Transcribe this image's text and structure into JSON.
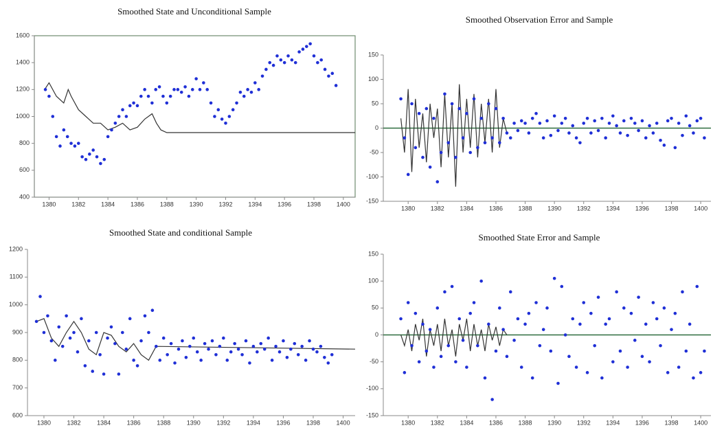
{
  "chart_data": [
    {
      "type": "scatter",
      "title": "Smoothed State and Unconditional Sample",
      "xlim": [
        1379,
        1400.8
      ],
      "xticks": [
        1380,
        1382,
        1384,
        1386,
        1388,
        1390,
        1392,
        1394,
        1396,
        1398,
        1400
      ],
      "ylim": [
        400,
        1600
      ],
      "yticks": [
        400,
        600,
        800,
        1000,
        1200,
        1400,
        1600
      ],
      "frame": true,
      "zero_line": false,
      "series": [
        {
          "mode": "line",
          "color": "#333333",
          "x": [
            1379.7,
            1380,
            1380.5,
            1381,
            1381.3,
            1381.5,
            1382,
            1382.5,
            1383,
            1383.5,
            1384,
            1384.5,
            1385,
            1385.5,
            1386,
            1386.5,
            1387,
            1387.3,
            1387.6,
            1388,
            1400.8
          ],
          "values": [
            1200,
            1250,
            1150,
            1100,
            1200,
            1150,
            1050,
            1000,
            950,
            950,
            900,
            920,
            950,
            900,
            920,
            980,
            1020,
            950,
            900,
            880,
            880
          ]
        },
        {
          "mode": "markers",
          "color": "#1f2fd6",
          "x": [
            1379.75,
            1380,
            1380.25,
            1380.5,
            1380.75,
            1381,
            1381.25,
            1381.5,
            1381.75,
            1382,
            1382.25,
            1382.5,
            1382.75,
            1383,
            1383.25,
            1383.5,
            1383.75,
            1384,
            1384.25,
            1384.5,
            1384.75,
            1385,
            1385.25,
            1385.5,
            1385.75,
            1386,
            1386.25,
            1386.5,
            1386.75,
            1387,
            1387.25,
            1387.5,
            1387.75,
            1388,
            1388.25,
            1388.5,
            1388.75,
            1389,
            1389.25,
            1389.5,
            1389.75,
            1390,
            1390.25,
            1390.5,
            1390.75,
            1391,
            1391.25,
            1391.5,
            1391.75,
            1392,
            1392.25,
            1392.5,
            1392.75,
            1393,
            1393.25,
            1393.5,
            1393.75,
            1394,
            1394.25,
            1394.5,
            1394.75,
            1395,
            1395.25,
            1395.5,
            1395.75,
            1396,
            1396.25,
            1396.5,
            1396.75,
            1397,
            1397.25,
            1397.5,
            1397.75,
            1398,
            1398.25,
            1398.5,
            1398.75,
            1399,
            1399.25,
            1399.5
          ],
          "values": [
            1200,
            1150,
            1000,
            850,
            780,
            900,
            850,
            800,
            780,
            800,
            700,
            680,
            720,
            750,
            700,
            650,
            680,
            850,
            900,
            950,
            1000,
            1050,
            1000,
            1080,
            1100,
            1080,
            1150,
            1200,
            1150,
            1100,
            1200,
            1220,
            1150,
            1100,
            1150,
            1200,
            1200,
            1180,
            1220,
            1150,
            1200,
            1280,
            1200,
            1250,
            1200,
            1100,
            1000,
            1050,
            980,
            950,
            1000,
            1050,
            1100,
            1180,
            1150,
            1200,
            1180,
            1250,
            1200,
            1300,
            1350,
            1400,
            1380,
            1450,
            1420,
            1400,
            1450,
            1420,
            1400,
            1480,
            1500,
            1520,
            1540,
            1450,
            1400,
            1420,
            1350,
            1300,
            1320,
            1230
          ]
        }
      ]
    },
    {
      "type": "scatter",
      "title": "Smoothed Observation Error and Sample",
      "xlim": [
        1378.3,
        1400.7
      ],
      "xticks": [
        1380,
        1382,
        1384,
        1386,
        1388,
        1390,
        1392,
        1394,
        1396,
        1398,
        1400
      ],
      "ylim": [
        -150,
        150
      ],
      "yticks": [
        -150,
        -100,
        -50,
        0,
        50,
        100,
        150
      ],
      "frame": false,
      "zero_line": true,
      "series": [
        {
          "mode": "line",
          "color": "#333333",
          "x": [
            1379.5,
            1379.75,
            1380,
            1380.25,
            1380.5,
            1380.75,
            1381,
            1381.25,
            1381.5,
            1381.75,
            1382,
            1382.25,
            1382.5,
            1382.75,
            1383,
            1383.25,
            1383.5,
            1383.75,
            1384,
            1384.25,
            1384.5,
            1384.75,
            1385,
            1385.25,
            1385.5,
            1385.75,
            1386,
            1386.25,
            1386.5,
            1386.75
          ],
          "values": [
            20,
            -50,
            80,
            -90,
            60,
            -40,
            30,
            -70,
            50,
            -20,
            40,
            -80,
            70,
            -60,
            50,
            -120,
            90,
            -50,
            60,
            -40,
            70,
            -60,
            50,
            -30,
            60,
            -50,
            80,
            -40,
            20,
            -10
          ]
        },
        {
          "mode": "markers",
          "color": "#1f2fd6",
          "x": [
            1379.5,
            1379.75,
            1380,
            1380.25,
            1380.5,
            1380.75,
            1381,
            1381.25,
            1381.5,
            1381.75,
            1382,
            1382.25,
            1382.5,
            1382.75,
            1383,
            1383.25,
            1383.5,
            1383.75,
            1384,
            1384.25,
            1384.5,
            1384.75,
            1385,
            1385.25,
            1385.5,
            1385.75,
            1386,
            1386.25,
            1386.5,
            1386.75,
            1387,
            1387.25,
            1387.5,
            1387.75,
            1388,
            1388.25,
            1388.5,
            1388.75,
            1389,
            1389.25,
            1389.5,
            1389.75,
            1390,
            1390.25,
            1390.5,
            1390.75,
            1391,
            1391.25,
            1391.5,
            1391.75,
            1392,
            1392.25,
            1392.5,
            1392.75,
            1393,
            1393.25,
            1393.5,
            1393.75,
            1394,
            1394.25,
            1394.5,
            1394.75,
            1395,
            1395.25,
            1395.5,
            1395.75,
            1396,
            1396.25,
            1396.5,
            1396.75,
            1397,
            1397.25,
            1397.5,
            1397.75,
            1398,
            1398.25,
            1398.5,
            1398.75,
            1399,
            1399.25,
            1399.5,
            1399.75,
            1400,
            1400.25
          ],
          "values": [
            60,
            -20,
            -95,
            50,
            -40,
            30,
            -60,
            40,
            -80,
            20,
            -110,
            -50,
            70,
            -30,
            50,
            -60,
            40,
            -20,
            30,
            -50,
            60,
            -40,
            20,
            -30,
            50,
            -20,
            40,
            -30,
            20,
            -10,
            -20,
            10,
            -5,
            15,
            10,
            -10,
            20,
            30,
            10,
            -20,
            15,
            -15,
            25,
            -5,
            10,
            20,
            -10,
            5,
            -20,
            -30,
            10,
            20,
            -10,
            15,
            -5,
            20,
            -20,
            10,
            25,
            5,
            -10,
            15,
            -15,
            20,
            10,
            -5,
            15,
            -20,
            5,
            -10,
            10,
            -25,
            -35,
            15,
            20,
            -40,
            10,
            -15,
            25,
            5,
            -10,
            15,
            20,
            -20
          ]
        }
      ]
    },
    {
      "type": "scatter",
      "title": "Smoothed State and conditional Sample",
      "xlim": [
        1378.9,
        1400.8
      ],
      "xticks": [
        1380,
        1382,
        1384,
        1386,
        1388,
        1390,
        1392,
        1394,
        1396,
        1398,
        1400
      ],
      "ylim": [
        600,
        1200
      ],
      "yticks": [
        600,
        700,
        800,
        900,
        1000,
        1100,
        1200
      ],
      "frame": false,
      "zero_line": false,
      "series": [
        {
          "mode": "line",
          "color": "#333333",
          "x": [
            1379.5,
            1380,
            1380.5,
            1381,
            1381.5,
            1382,
            1382.5,
            1383,
            1383.5,
            1384,
            1384.5,
            1385,
            1385.5,
            1386,
            1386.5,
            1387,
            1387.5,
            1400.8
          ],
          "values": [
            940,
            950,
            880,
            850,
            900,
            940,
            900,
            840,
            820,
            900,
            890,
            850,
            830,
            860,
            820,
            800,
            850,
            840
          ]
        },
        {
          "mode": "markers",
          "color": "#1f2fd6",
          "x": [
            1379.5,
            1379.75,
            1380,
            1380.25,
            1380.5,
            1380.75,
            1381,
            1381.25,
            1381.5,
            1381.75,
            1382,
            1382.25,
            1382.5,
            1382.75,
            1383,
            1383.25,
            1383.5,
            1383.75,
            1384,
            1384.25,
            1384.5,
            1384.75,
            1385,
            1385.25,
            1385.5,
            1385.75,
            1386,
            1386.25,
            1386.5,
            1386.75,
            1387,
            1387.25,
            1387.5,
            1387.75,
            1388,
            1388.25,
            1388.5,
            1388.75,
            1389,
            1389.25,
            1389.5,
            1389.75,
            1390,
            1390.25,
            1390.5,
            1390.75,
            1391,
            1391.25,
            1391.5,
            1391.75,
            1392,
            1392.25,
            1392.5,
            1392.75,
            1393,
            1393.25,
            1393.5,
            1393.75,
            1394,
            1394.25,
            1394.5,
            1394.75,
            1395,
            1395.25,
            1395.5,
            1395.75,
            1396,
            1396.25,
            1396.5,
            1396.75,
            1397,
            1397.25,
            1397.5,
            1397.75,
            1398,
            1398.25,
            1398.5,
            1398.75,
            1399,
            1399.25
          ],
          "values": [
            940,
            1030,
            900,
            960,
            870,
            800,
            920,
            850,
            960,
            880,
            900,
            830,
            950,
            780,
            870,
            760,
            900,
            820,
            750,
            880,
            920,
            860,
            750,
            900,
            840,
            950,
            800,
            780,
            870,
            960,
            900,
            980,
            850,
            800,
            880,
            820,
            860,
            790,
            840,
            870,
            810,
            850,
            880,
            830,
            800,
            860,
            840,
            870,
            820,
            850,
            880,
            800,
            830,
            860,
            840,
            820,
            870,
            790,
            850,
            830,
            860,
            840,
            880,
            800,
            850,
            830,
            870,
            810,
            840,
            860,
            820,
            850,
            800,
            870,
            840,
            830,
            850,
            810,
            790,
            820
          ]
        }
      ]
    },
    {
      "type": "scatter",
      "title": "Smoothed State Error and Sample",
      "xlim": [
        1378.3,
        1400.7
      ],
      "xticks": [
        1380,
        1382,
        1384,
        1386,
        1388,
        1390,
        1392,
        1394,
        1396,
        1398,
        1400
      ],
      "ylim": [
        -150,
        150
      ],
      "yticks": [
        -150,
        -100,
        -50,
        0,
        50,
        100,
        150
      ],
      "frame": false,
      "zero_line": true,
      "series": [
        {
          "mode": "line",
          "color": "#333333",
          "x": [
            1379.5,
            1379.75,
            1380,
            1380.25,
            1380.5,
            1380.75,
            1381,
            1381.25,
            1381.5,
            1381.75,
            1382,
            1382.25,
            1382.5,
            1382.75,
            1383,
            1383.25,
            1383.5,
            1383.75,
            1384,
            1384.25,
            1384.5,
            1384.75,
            1385,
            1385.25,
            1385.5,
            1385.75,
            1386,
            1386.25,
            1386.5,
            1386.75
          ],
          "values": [
            0,
            -20,
            10,
            -30,
            20,
            -10,
            30,
            -40,
            10,
            -20,
            20,
            -30,
            30,
            -20,
            10,
            -40,
            20,
            -10,
            30,
            -30,
            20,
            -20,
            10,
            -30,
            20,
            -10,
            15,
            -20,
            10,
            0
          ]
        },
        {
          "mode": "markers",
          "color": "#1f2fd6",
          "x": [
            1379.5,
            1379.75,
            1380,
            1380.25,
            1380.5,
            1380.75,
            1381,
            1381.25,
            1381.5,
            1381.75,
            1382,
            1382.25,
            1382.5,
            1382.75,
            1383,
            1383.25,
            1383.5,
            1383.75,
            1384,
            1384.25,
            1384.5,
            1384.75,
            1385,
            1385.25,
            1385.5,
            1385.75,
            1386,
            1386.25,
            1386.5,
            1386.75,
            1387,
            1387.25,
            1387.5,
            1387.75,
            1388,
            1388.25,
            1388.5,
            1388.75,
            1389,
            1389.25,
            1389.5,
            1389.75,
            1390,
            1390.25,
            1390.5,
            1390.75,
            1391,
            1391.25,
            1391.5,
            1391.75,
            1392,
            1392.25,
            1392.5,
            1392.75,
            1393,
            1393.25,
            1393.5,
            1393.75,
            1394,
            1394.25,
            1394.5,
            1394.75,
            1395,
            1395.25,
            1395.5,
            1395.75,
            1396,
            1396.25,
            1396.5,
            1396.75,
            1397,
            1397.25,
            1397.5,
            1397.75,
            1398,
            1398.25,
            1398.5,
            1398.75,
            1399,
            1399.25,
            1399.5,
            1399.75,
            1400,
            1400.25
          ],
          "values": [
            30,
            -70,
            60,
            -20,
            40,
            -50,
            20,
            -30,
            10,
            -60,
            50,
            -40,
            80,
            -20,
            90,
            -50,
            30,
            -10,
            -60,
            40,
            60,
            -20,
            100,
            -80,
            20,
            -120,
            -30,
            50,
            10,
            -40,
            80,
            -10,
            30,
            -60,
            20,
            40,
            -80,
            60,
            -20,
            10,
            50,
            -30,
            105,
            -90,
            90,
            0,
            -40,
            30,
            -60,
            20,
            60,
            -70,
            40,
            -20,
            70,
            -80,
            20,
            30,
            -50,
            80,
            -30,
            50,
            -60,
            40,
            -10,
            70,
            -40,
            20,
            -50,
            60,
            30,
            -20,
            50,
            -70,
            10,
            40,
            -60,
            80,
            -30,
            20,
            -80,
            90,
            -70,
            -30
          ]
        }
      ]
    }
  ]
}
